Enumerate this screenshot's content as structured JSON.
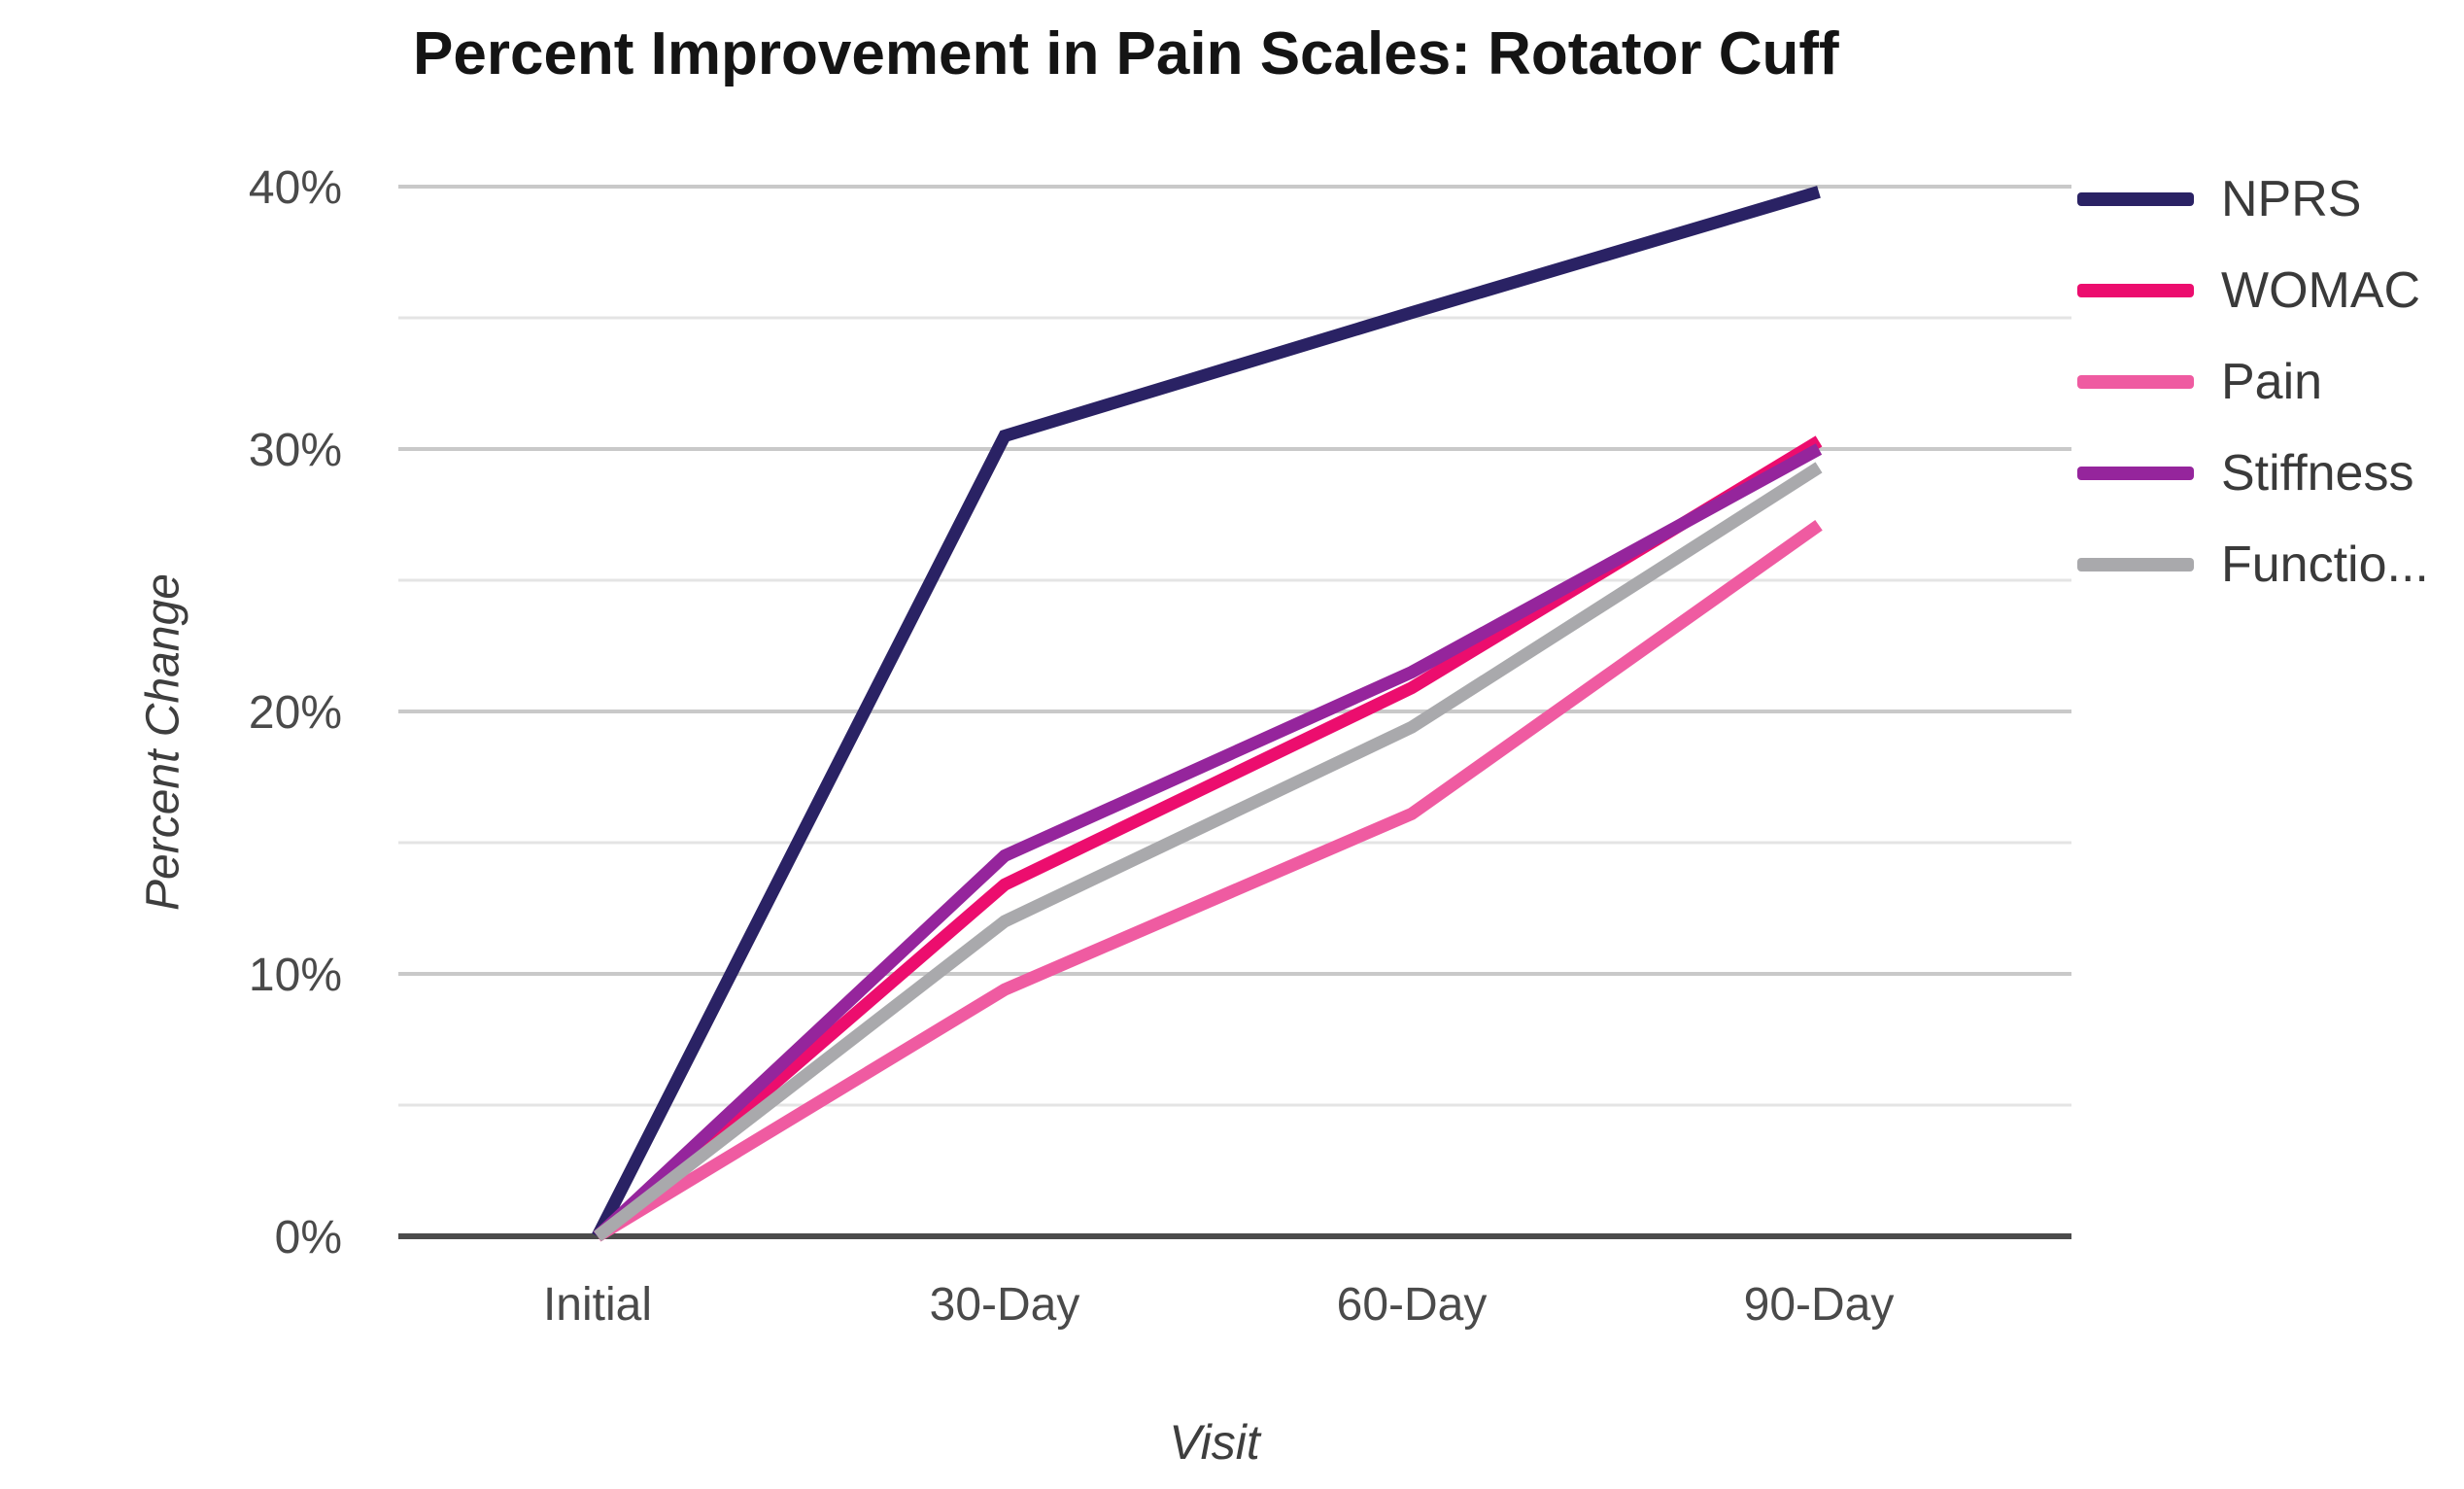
{
  "chart_data": {
    "type": "line",
    "title": "Percent Improvement in Pain Scales: Rotator Cuff",
    "xlabel": "Visit",
    "ylabel": "Percent Change",
    "categories": [
      "Initial",
      "30-Day",
      "60-Day",
      "90-Day"
    ],
    "series": [
      {
        "name": "NPRS",
        "legend_label": "NPRS",
        "color": "#2a2264",
        "values": [
          0,
          30.5,
          35.2,
          39.8
        ]
      },
      {
        "name": "WOMAC",
        "legend_label": "WOMAC",
        "color": "#ec0d6e",
        "values": [
          0,
          13.4,
          20.9,
          30.3
        ]
      },
      {
        "name": "Pain",
        "legend_label": "Pain",
        "color": "#ef5ba1",
        "values": [
          0,
          9.4,
          16.1,
          27.1
        ]
      },
      {
        "name": "Stiffness",
        "legend_label": "Stiffness",
        "color": "#95259c",
        "values": [
          0,
          14.5,
          21.5,
          30.0
        ]
      },
      {
        "name": "Function",
        "legend_label": "Functio...",
        "color": "#a9a9ac",
        "values": [
          0,
          12.0,
          19.4,
          29.3
        ]
      }
    ],
    "ylim": [
      0,
      40
    ],
    "ytick_step": 10,
    "minor_gridline_step": 5,
    "ytick_labels": [
      "0%",
      "10%",
      "20%",
      "30%",
      "40%"
    ],
    "grid": true,
    "legend_position": "right"
  }
}
